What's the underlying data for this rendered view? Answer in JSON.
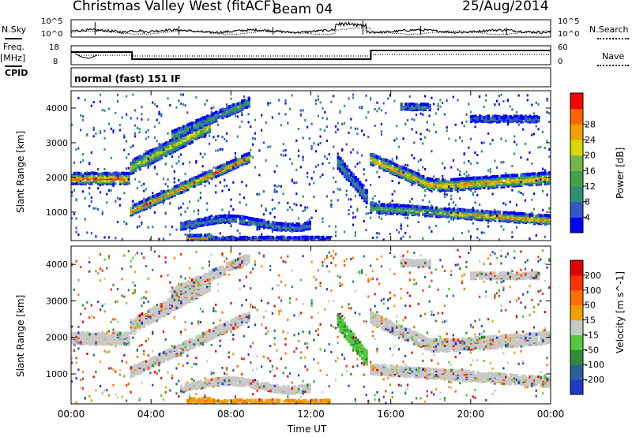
{
  "header": {
    "station": "Christmas Valley West (fitACF)",
    "beam": "Beam 04",
    "date": "25/Aug/2014"
  },
  "side_labels": {
    "nsky": "N.Sky",
    "nsearch": "N.Search",
    "freq": "Freq.",
    "freq_unit": "[MHz]",
    "nave": "Nave",
    "cpid": "CPID"
  },
  "noise_axis": {
    "top_tick": "10^5",
    "bottom_tick": "10^0"
  },
  "freq_axis": {
    "left_ticks": [
      "18",
      "8"
    ],
    "right_ticks": [
      "60",
      "0"
    ]
  },
  "cpid_text": "normal (fast) 151 IF",
  "colors": {
    "power": [
      "#0000ff",
      "#3355cc",
      "#2f8f73",
      "#45a145",
      "#70b84a",
      "#d8d800",
      "#f0a000",
      "#ff6600",
      "#ff0000"
    ],
    "velocity": [
      "#1c3cc8",
      "#28609a",
      "#2e8c3c",
      "#55c83c",
      "#c8c8c8",
      "#f0a000",
      "#ff7000",
      "#ff3300",
      "#e00000"
    ]
  },
  "chart_data": [
    {
      "type": "heatmap",
      "panel": "power",
      "ylabel": "Slant Range [km]",
      "xlabel": "Time UT",
      "x_ticks": [
        "00:00",
        "04:00",
        "08:00",
        "12:00",
        "16:00",
        "20:00",
        "00:00"
      ],
      "y_ticks": [
        1000,
        2000,
        3000,
        4000
      ],
      "ylim": [
        180,
        4500
      ],
      "colorbar": {
        "label": "Power [dB]",
        "ticks": [
          4,
          8,
          12,
          16,
          20,
          24,
          28
        ]
      }
    },
    {
      "type": "heatmap",
      "panel": "velocity",
      "ylabel": "Slant Range [km]",
      "xlabel": "Time UT",
      "x_ticks": [
        "00:00",
        "04:00",
        "08:00",
        "12:00",
        "16:00",
        "20:00",
        "00:00"
      ],
      "y_ticks": [
        1000,
        2000,
        3000,
        4000
      ],
      "ylim": [
        180,
        4500
      ],
      "colorbar": {
        "label": "Velocity [m s^-1]",
        "ticks": [
          200,
          100,
          50,
          15,
          -15,
          -50,
          -100,
          -200
        ]
      }
    }
  ]
}
